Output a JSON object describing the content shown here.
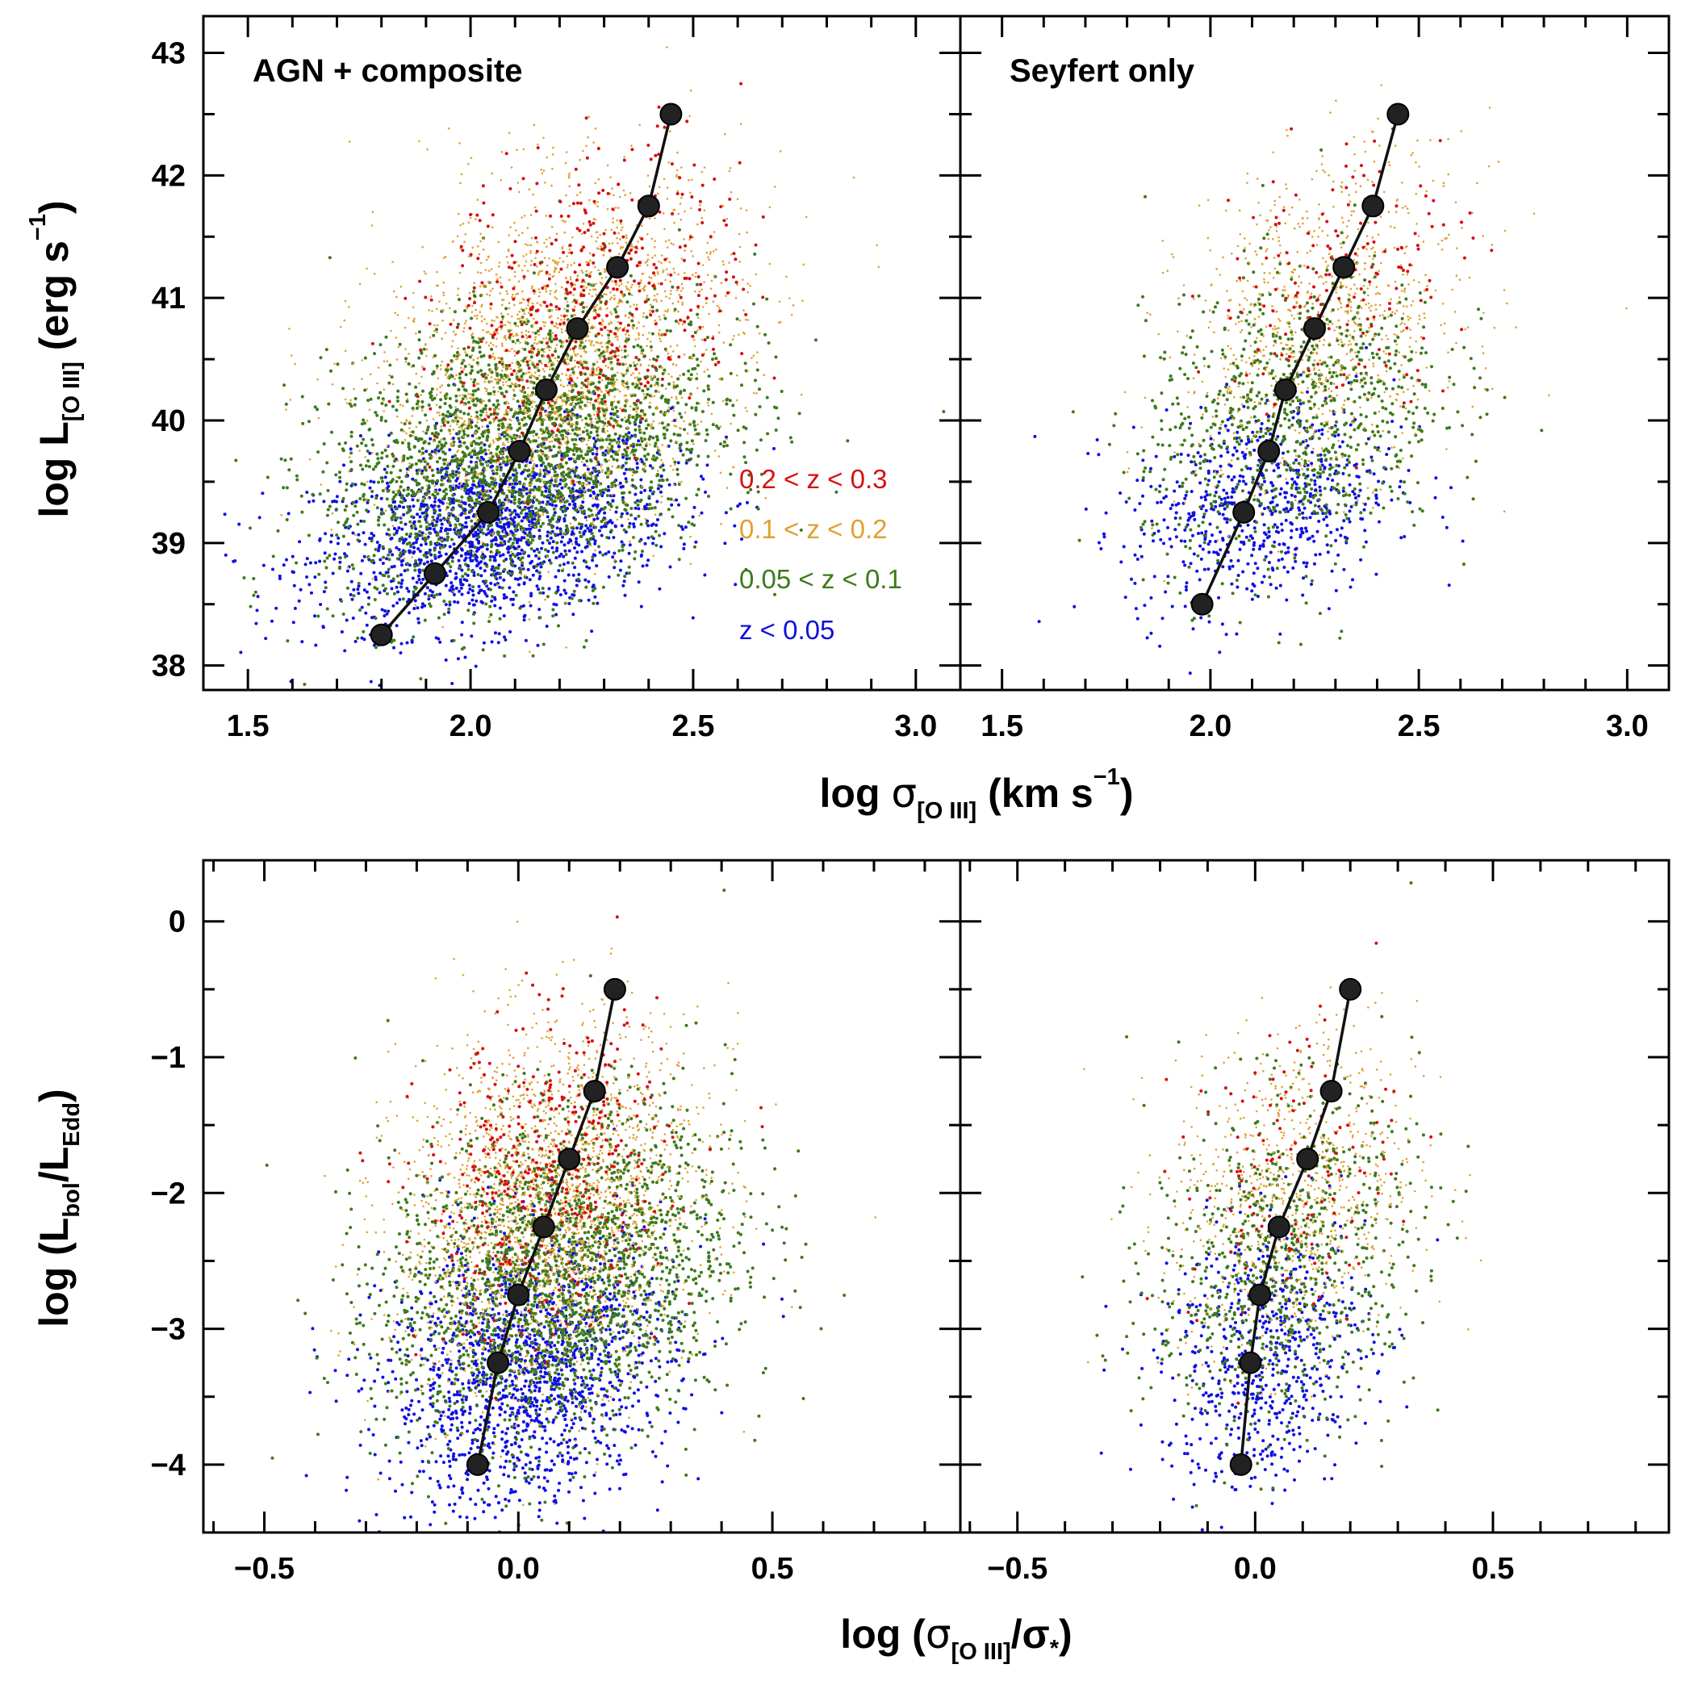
{
  "colors": {
    "z_lt_005": "#1010e0",
    "z_005_01": "#3d7a1c",
    "z_01_02": "#e0a030",
    "z_02_03": "#d61010",
    "median": "#111111"
  },
  "chart_data": [
    {
      "type": "scatter",
      "panel": "top-left",
      "title": "AGN + composite",
      "xlim": [
        1.4,
        3.1
      ],
      "ylim": [
        37.8,
        43.3
      ],
      "xticks": [
        "1.5",
        "2.0",
        "2.5",
        "3.0"
      ],
      "yticks": [
        "38",
        "39",
        "40",
        "41",
        "42",
        "43"
      ],
      "legend": {
        "placement": "center-right",
        "entries": [
          "0.2 < z < 0.3",
          "0.1 < z < 0.2",
          "0.05 < z < 0.1",
          "z < 0.05"
        ]
      },
      "series": [
        {
          "name": "0.2 < z < 0.3",
          "x_center": 2.28,
          "y_center": 41.0
        },
        {
          "name": "0.1 < z < 0.2",
          "x_center": 2.2,
          "y_center": 40.5
        },
        {
          "name": "0.05 < z < 0.1",
          "x_center": 2.12,
          "y_center": 39.75
        },
        {
          "name": "z < 0.05",
          "x_center": 2.05,
          "y_center": 39.1
        }
      ],
      "medians": {
        "x": [
          1.8,
          1.92,
          2.04,
          2.11,
          2.17,
          2.24,
          2.33,
          2.4,
          2.45
        ],
        "y": [
          38.25,
          38.75,
          39.25,
          39.75,
          40.25,
          40.75,
          41.25,
          41.75,
          42.5
        ]
      }
    },
    {
      "type": "scatter",
      "panel": "top-right",
      "title": "Seyfert only",
      "xlim": [
        1.4,
        3.1
      ],
      "ylim": [
        37.8,
        43.3
      ],
      "xticks": [
        "1.5",
        "2.0",
        "2.5",
        "3.0"
      ],
      "yticks": [],
      "series": [
        {
          "name": "0.2 < z < 0.3",
          "x_center": 2.32,
          "y_center": 41.2
        },
        {
          "name": "0.1 < z < 0.2",
          "x_center": 2.27,
          "y_center": 40.8
        },
        {
          "name": "0.05 < z < 0.1",
          "x_center": 2.2,
          "y_center": 40.0
        },
        {
          "name": "z < 0.05",
          "x_center": 2.12,
          "y_center": 39.3
        }
      ],
      "medians": {
        "x": [
          1.98,
          2.08,
          2.14,
          2.18,
          2.25,
          2.32,
          2.39,
          2.45
        ],
        "y": [
          38.5,
          39.25,
          39.75,
          40.25,
          40.75,
          41.25,
          41.75,
          42.5
        ]
      }
    },
    {
      "type": "scatter",
      "panel": "bottom-left",
      "xlim": [
        -0.62,
        0.87
      ],
      "ylim": [
        -4.5,
        0.45
      ],
      "xticks": [
        "−0.5",
        "0.0",
        "0.5"
      ],
      "yticks": [
        "−4",
        "−3",
        "−2",
        "−1",
        "0"
      ],
      "series": [
        {
          "name": "0.2 < z < 0.3",
          "x_center": 0.05,
          "y_center": -1.9
        },
        {
          "name": "0.1 < z < 0.2",
          "x_center": 0.06,
          "y_center": -2.1
        },
        {
          "name": "0.05 < z < 0.1",
          "x_center": 0.08,
          "y_center": -2.6
        },
        {
          "name": "z < 0.05",
          "x_center": 0.02,
          "y_center": -3.3
        }
      ],
      "medians": {
        "x": [
          -0.08,
          -0.04,
          0.0,
          0.05,
          0.1,
          0.15,
          0.19
        ],
        "y": [
          -4.0,
          -3.25,
          -2.75,
          -2.25,
          -1.75,
          -1.25,
          -0.5
        ]
      }
    },
    {
      "type": "scatter",
      "panel": "bottom-right",
      "xlim": [
        -0.62,
        0.87
      ],
      "ylim": [
        -4.5,
        0.45
      ],
      "xticks": [
        "−0.5",
        "0.0",
        "0.5"
      ],
      "yticks": [],
      "series": [
        {
          "name": "0.2 < z < 0.3",
          "x_center": 0.08,
          "y_center": -1.8
        },
        {
          "name": "0.1 < z < 0.2",
          "x_center": 0.08,
          "y_center": -2.0
        },
        {
          "name": "0.05 < z < 0.1",
          "x_center": 0.06,
          "y_center": -2.5
        },
        {
          "name": "z < 0.05",
          "x_center": 0.02,
          "y_center": -3.2
        }
      ],
      "medians": {
        "x": [
          -0.03,
          -0.01,
          0.01,
          0.05,
          0.11,
          0.16,
          0.2
        ],
        "y": [
          -4.0,
          -3.25,
          -2.75,
          -2.25,
          -1.75,
          -1.25,
          -0.5
        ]
      }
    }
  ],
  "axes": {
    "top_xlabel": {
      "prefix": "log ",
      "symbol": "σ",
      "sub": "[O III]",
      "suffix": " (km s",
      "sup": "−1",
      "close": ")"
    },
    "top_ylabel": {
      "prefix": "log L",
      "sub": "[O III]",
      "suffix": " (erg s",
      "sup": "−1",
      "close": ")"
    },
    "bottom_xlabel": {
      "prefix": "log (",
      "symbol": "σ",
      "sub": "[O III]",
      "slash": "/σ",
      "sub2": "*",
      "close": ")"
    },
    "bottom_ylabel": {
      "prefix": "log (L",
      "sub": "bol",
      "slash": "/L",
      "sub2": "Edd",
      "close": ")"
    }
  }
}
